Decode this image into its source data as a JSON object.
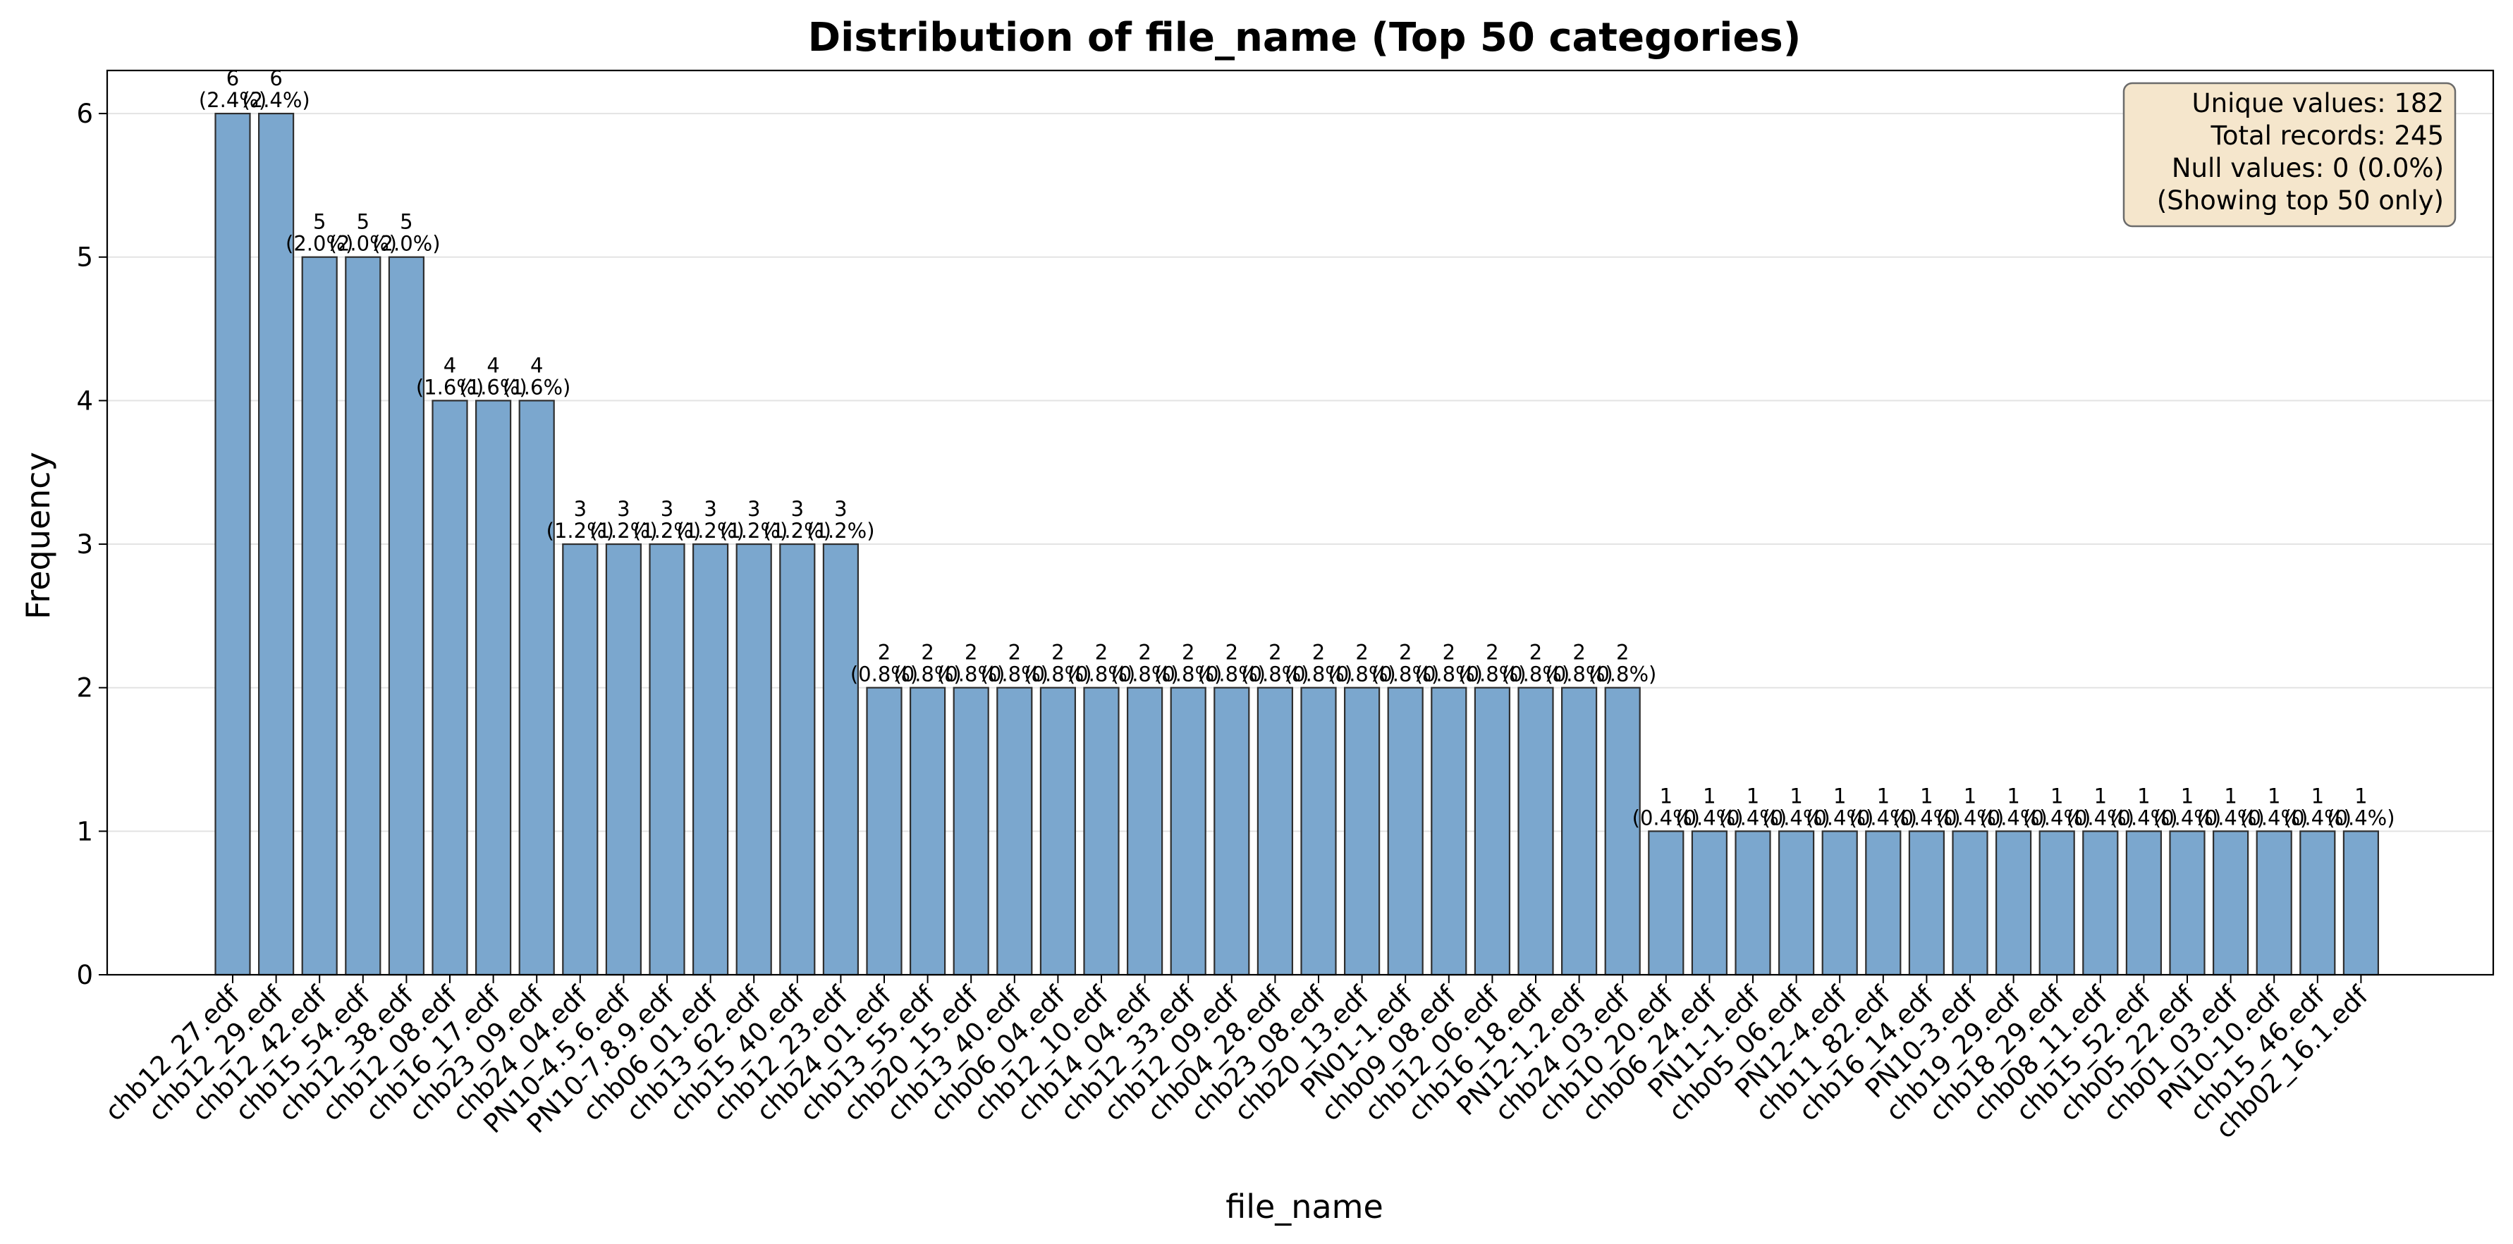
{
  "chart_data": {
    "type": "bar",
    "title": "Distribution of file_name (Top 50 categories)",
    "xlabel": "file_name",
    "ylabel": "Frequency",
    "ylim": [
      0,
      6.3
    ],
    "yticks": [
      0,
      1,
      2,
      3,
      4,
      5,
      6
    ],
    "grid": "y",
    "bar_color": "#7BA7CE",
    "bar_edge_color": "#2f2f2f",
    "categories": [
      "chb12_27.edf",
      "chb12_29.edf",
      "chb12_42.edf",
      "chb15_54.edf",
      "chb12_38.edf",
      "chb12_08.edf",
      "chb16_17.edf",
      "chb23_09.edf",
      "chb24_04.edf",
      "PN10-4.5.6.edf",
      "PN10-7.8.9.edf",
      "chb06_01.edf",
      "chb13_62.edf",
      "chb15_40.edf",
      "chb12_23.edf",
      "chb24_01.edf",
      "chb13_55.edf",
      "chb20_15.edf",
      "chb13_40.edf",
      "chb06_04.edf",
      "chb12_10.edf",
      "chb14_04.edf",
      "chb12_33.edf",
      "chb12_09.edf",
      "chb04_28.edf",
      "chb23_08.edf",
      "chb20_13.edf",
      "PN01-1.edf",
      "chb09_08.edf",
      "chb12_06.edf",
      "chb16_18.edf",
      "PN12-1.2.edf",
      "chb24_03.edf",
      "chb10_20.edf",
      "chb06_24.edf",
      "PN11-1.edf",
      "chb05_06.edf",
      "PN12-4.edf",
      "chb11_82.edf",
      "chb16_14.edf",
      "PN10-3.edf",
      "chb19_29.edf",
      "chb18_29.edf",
      "chb08_11.edf",
      "chb15_52.edf",
      "chb05_22.edf",
      "chb01_03.edf",
      "PN10-10.edf",
      "chb15_46.edf",
      "chb02_16.1.edf"
    ],
    "values": [
      6,
      6,
      5,
      5,
      5,
      4,
      4,
      4,
      3,
      3,
      3,
      3,
      3,
      3,
      3,
      2,
      2,
      2,
      2,
      2,
      2,
      2,
      2,
      2,
      2,
      2,
      2,
      2,
      2,
      2,
      2,
      2,
      2,
      1,
      1,
      1,
      1,
      1,
      1,
      1,
      1,
      1,
      1,
      1,
      1,
      1,
      1,
      1,
      1,
      1
    ],
    "percent_labels": [
      "(2.4%)",
      "(2.4%)",
      "(2.0%)",
      "(2.0%)",
      "(2.0%)",
      "(1.6%)",
      "(1.6%)",
      "(1.6%)",
      "(1.2%)",
      "(1.2%)",
      "(1.2%)",
      "(1.2%)",
      "(1.2%)",
      "(1.2%)",
      "(1.2%)",
      "(0.8%)",
      "(0.8%)",
      "(0.8%)",
      "(0.8%)",
      "(0.8%)",
      "(0.8%)",
      "(0.8%)",
      "(0.8%)",
      "(0.8%)",
      "(0.8%)",
      "(0.8%)",
      "(0.8%)",
      "(0.8%)",
      "(0.8%)",
      "(0.8%)",
      "(0.8%)",
      "(0.8%)",
      "(0.8%)",
      "(0.4%)",
      "(0.4%)",
      "(0.4%)",
      "(0.4%)",
      "(0.4%)",
      "(0.4%)",
      "(0.4%)",
      "(0.4%)",
      "(0.4%)",
      "(0.4%)",
      "(0.4%)",
      "(0.4%)",
      "(0.4%)",
      "(0.4%)",
      "(0.4%)",
      "(0.4%)",
      "(0.4%)"
    ],
    "info_box": {
      "placement": "top-right",
      "lines": [
        "Unique values: 182",
        "Total records: 245",
        "Null values: 0 (0.0%)",
        "(Showing top 50 only)"
      ]
    }
  }
}
